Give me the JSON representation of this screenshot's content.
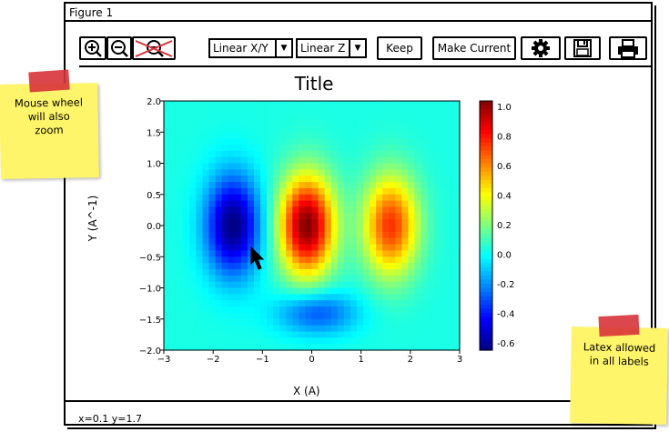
{
  "window": {
    "title": "Figure 1"
  },
  "toolbar": {
    "zoom_in_icon": "zoom-in-icon",
    "zoom_out_icon": "zoom-out-icon",
    "reset_zoom_icon": "reset-zoom-icon",
    "xy_scale": "Linear X/Y",
    "z_scale": "Linear Z",
    "keep_label": "Keep",
    "make_current_label": "Make Current",
    "settings_icon": "gear-icon",
    "save_icon": "save-icon",
    "print_icon": "print-icon"
  },
  "plot": {
    "title": "Title",
    "xlabel": "X (A)",
    "ylabel": "Y (A^-1)",
    "xticks": [
      "-3",
      "-2",
      "-1",
      "0",
      "1",
      "2",
      "3"
    ],
    "yticks": [
      "2.0",
      "1.5",
      "1.0",
      "0.5",
      "0.0",
      "-0.5",
      "-1.0",
      "-1.5",
      "-2.0"
    ],
    "colorbar_ticks": [
      "1.0",
      "0.8",
      "0.6",
      "0.4",
      "0.2",
      "0.0",
      "-0.2",
      "-0.4",
      "-0.6"
    ]
  },
  "chart_data": {
    "type": "heatmap",
    "title": "Title",
    "xlabel": "X (A)",
    "ylabel": "Y (A^-1)",
    "xlim": [
      -3,
      3
    ],
    "ylim": [
      -2,
      2
    ],
    "zlim": [
      -0.7,
      1.05
    ],
    "colormap": "jet",
    "features": [
      {
        "kind": "minimum",
        "x": -1.6,
        "y": 0.0,
        "value": -0.7
      },
      {
        "kind": "maximum",
        "x": -0.1,
        "y": 0.0,
        "value": 1.05
      },
      {
        "kind": "maximum",
        "x": 1.6,
        "y": 0.0,
        "value": 0.75
      },
      {
        "kind": "minimum",
        "x": 0.1,
        "y": -1.4,
        "value": -0.35
      }
    ]
  },
  "status": {
    "text": "x=0.1     y=1.7"
  },
  "notes": {
    "left": "Mouse wheel\nwill also\nzoom",
    "right": "Latex allowed\nin all labels"
  }
}
